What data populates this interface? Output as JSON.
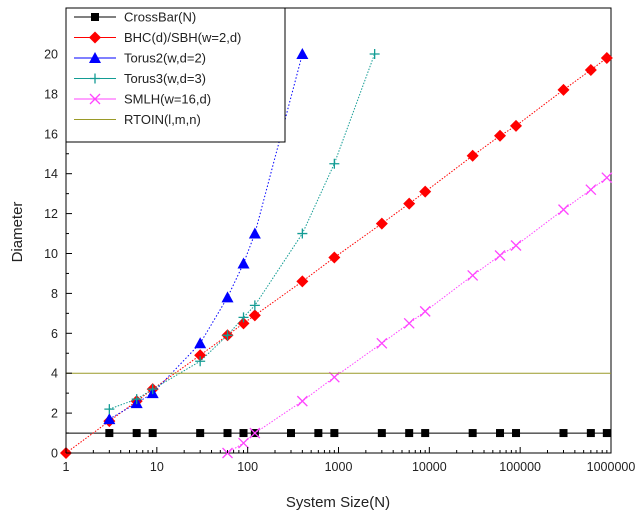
{
  "chart_data": {
    "type": "line",
    "xlabel": "System Size(N)",
    "ylabel": "Diameter",
    "x_scale": "log",
    "xlim": [
      1,
      1000000
    ],
    "ylim": [
      0,
      21
    ],
    "x_ticks": [
      {
        "value": 1,
        "label": "1"
      },
      {
        "value": 10,
        "label": "10"
      },
      {
        "value": 100,
        "label": "100"
      },
      {
        "value": 1000,
        "label": "1000"
      },
      {
        "value": 10000,
        "label": "10000"
      },
      {
        "value": 100000,
        "label": "100000"
      },
      {
        "value": 1000000,
        "label": "1000000"
      }
    ],
    "y_ticks": [
      0,
      2,
      4,
      6,
      8,
      10,
      12,
      14,
      16,
      18,
      20
    ],
    "grid": false,
    "legend_position": "top-left",
    "series": [
      {
        "name": "CrossBar(N)",
        "color": "#000000",
        "marker": "square",
        "x": [
          3,
          6,
          9,
          30,
          60,
          90,
          120,
          300,
          600,
          900,
          3000,
          6000,
          9000,
          30000,
          60000,
          90000,
          300000,
          600000,
          900000
        ],
        "y": [
          1,
          1,
          1,
          1,
          1,
          1,
          1,
          1,
          1,
          1,
          1,
          1,
          1,
          1,
          1,
          1,
          1,
          1,
          1
        ],
        "line_x": [
          1,
          1000000
        ],
        "line_y": [
          1,
          1
        ]
      },
      {
        "name": "BHC(d)/SBH(w=2,d)",
        "color": "#ff0000",
        "marker": "diamond",
        "x": [
          1,
          3,
          6,
          9,
          30,
          60,
          90,
          120,
          400,
          900,
          3000,
          6000,
          9000,
          30000,
          60000,
          90000,
          300000,
          600000,
          900000
        ],
        "y": [
          0,
          1.6,
          2.6,
          3.2,
          4.9,
          5.9,
          6.5,
          6.9,
          8.6,
          9.8,
          11.5,
          12.5,
          13.1,
          14.9,
          15.9,
          16.4,
          18.2,
          19.2,
          19.8
        ]
      },
      {
        "name": "Torus2(w,d=2)",
        "color": "#0000ff",
        "marker": "triangle",
        "x": [
          3,
          6,
          9,
          30,
          60,
          90,
          120,
          400
        ],
        "y": [
          1.7,
          2.5,
          3.0,
          5.5,
          7.8,
          9.5,
          11.0,
          20.0
        ]
      },
      {
        "name": "Torus3(w,d=3)",
        "color": "#139c94",
        "marker": "plus",
        "x": [
          3,
          6,
          9,
          30,
          60,
          90,
          120,
          400,
          900,
          2500
        ],
        "y": [
          2.2,
          2.7,
          3.2,
          4.6,
          5.9,
          6.8,
          7.4,
          11.0,
          14.5,
          20.0
        ]
      },
      {
        "name": "SMLH(w=16,d)",
        "color": "#ff44ff",
        "marker": "cross",
        "x": [
          60,
          90,
          120,
          400,
          900,
          3000,
          6000,
          9000,
          30000,
          60000,
          90000,
          300000,
          600000,
          900000
        ],
        "y": [
          0,
          0.5,
          1.0,
          2.6,
          3.8,
          5.5,
          6.5,
          7.1,
          8.9,
          9.9,
          10.4,
          12.2,
          13.2,
          13.8
        ]
      },
      {
        "name": "RTOIN(l,m,n)",
        "color": "#9a9a28",
        "marker": "none",
        "x": [
          1,
          1000000
        ],
        "y": [
          4,
          4
        ]
      }
    ]
  }
}
